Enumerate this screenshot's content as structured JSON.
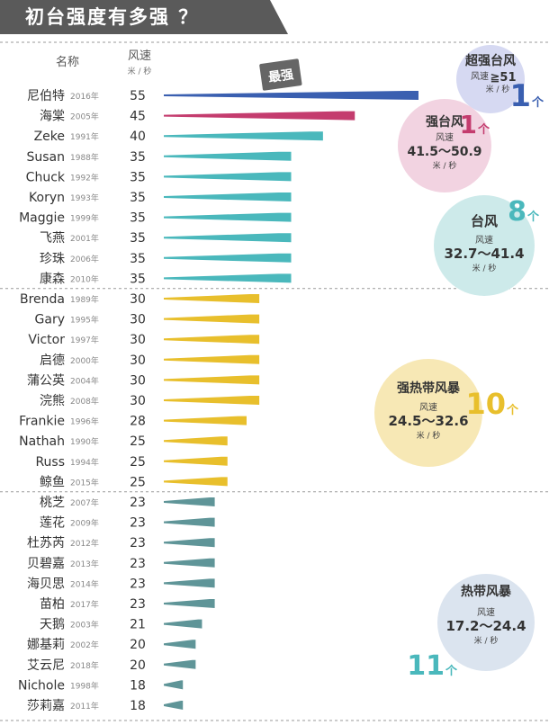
{
  "title": "初台强度有多强 ？",
  "header": {
    "name": "名称",
    "speed": "风速",
    "unit": "米 / 秒"
  },
  "stamp": "最强",
  "chart_data": {
    "type": "bar",
    "orientation": "horizontal",
    "rows": [
      {
        "name": "尼伯特",
        "year": "2016年",
        "value": 55,
        "cat": "super"
      },
      {
        "name": "海棠",
        "year": "2005年",
        "value": 45,
        "cat": "strong"
      },
      {
        "name": "Zeke",
        "year": "1991年",
        "value": 40,
        "cat": "typhoon"
      },
      {
        "name": "Susan",
        "year": "1988年",
        "value": 35,
        "cat": "typhoon"
      },
      {
        "name": "Chuck",
        "year": "1992年",
        "value": 35,
        "cat": "typhoon"
      },
      {
        "name": "Koryn",
        "year": "1993年",
        "value": 35,
        "cat": "typhoon"
      },
      {
        "name": "Maggie",
        "year": "1999年",
        "value": 35,
        "cat": "typhoon"
      },
      {
        "name": "飞燕",
        "year": "2001年",
        "value": 35,
        "cat": "typhoon"
      },
      {
        "name": "珍珠",
        "year": "2006年",
        "value": 35,
        "cat": "typhoon"
      },
      {
        "name": "康森",
        "year": "2010年",
        "value": 35,
        "cat": "typhoon"
      },
      {
        "name": "Brenda",
        "year": "1989年",
        "value": 30,
        "cat": "sts"
      },
      {
        "name": "Gary",
        "year": "1995年",
        "value": 30,
        "cat": "sts"
      },
      {
        "name": "Victor",
        "year": "1997年",
        "value": 30,
        "cat": "sts"
      },
      {
        "name": "启德",
        "year": "2000年",
        "value": 30,
        "cat": "sts"
      },
      {
        "name": "蒲公英",
        "year": "2004年",
        "value": 30,
        "cat": "sts"
      },
      {
        "name": "浣熊",
        "year": "2008年",
        "value": 30,
        "cat": "sts"
      },
      {
        "name": "Frankie",
        "year": "1996年",
        "value": 28,
        "cat": "sts"
      },
      {
        "name": "Nathah",
        "year": "1990年",
        "value": 25,
        "cat": "sts"
      },
      {
        "name": "Russ",
        "year": "1994年",
        "value": 25,
        "cat": "sts"
      },
      {
        "name": "鲸鱼",
        "year": "2015年",
        "value": 25,
        "cat": "sts"
      },
      {
        "name": "桃芝",
        "year": "2007年",
        "value": 23,
        "cat": "ts"
      },
      {
        "name": "莲花",
        "year": "2009年",
        "value": 23,
        "cat": "ts"
      },
      {
        "name": "杜苏芮",
        "year": "2012年",
        "value": 23,
        "cat": "ts"
      },
      {
        "name": "贝碧嘉",
        "year": "2013年",
        "value": 23,
        "cat": "ts"
      },
      {
        "name": "海贝思",
        "year": "2014年",
        "value": 23,
        "cat": "ts"
      },
      {
        "name": "苗柏",
        "year": "2017年",
        "value": 23,
        "cat": "ts"
      },
      {
        "name": "天鹅",
        "year": "2003年",
        "value": 21,
        "cat": "ts"
      },
      {
        "name": "娜基莉",
        "year": "2002年",
        "value": 20,
        "cat": "ts"
      },
      {
        "name": "艾云尼",
        "year": "2018年",
        "value": 20,
        "cat": "ts"
      },
      {
        "name": "Nichole",
        "year": "1998年",
        "value": 18,
        "cat": "ts"
      },
      {
        "name": "莎莉嘉",
        "year": "2011年",
        "value": 18,
        "cat": "ts"
      }
    ],
    "categories": {
      "super": {
        "label": "超强台风",
        "speed_label": "风速",
        "range": "≧51",
        "unit": "米 / 秒",
        "count": "1",
        "count_unit": "个",
        "color": "#3a5fb0",
        "bubble": "#d6d9f2"
      },
      "strong": {
        "label": "强台风",
        "speed_label": "风速",
        "range": "41.5～50.9",
        "unit": "米 / 秒",
        "count": "1",
        "count_unit": "个",
        "color": "#c43c6e",
        "bubble": "#f2d3e1"
      },
      "typhoon": {
        "label": "台风",
        "speed_label": "风速",
        "range": "32.7～41.4",
        "unit": "米 / 秒",
        "count": "8",
        "count_unit": "个",
        "color": "#4ab8bc",
        "bubble": "#cdeaea"
      },
      "sts": {
        "label": "强热带风暴",
        "speed_label": "风速",
        "range": "24.5～32.6",
        "unit": "米 / 秒",
        "count": "10",
        "count_unit": "个",
        "color": "#e8bf2c",
        "bubble": "#f7e8b5"
      },
      "ts": {
        "label": "热带风暴",
        "speed_label": "风速",
        "range": "17.2～24.4",
        "unit": "米 / 秒",
        "count": "11",
        "count_unit": "个",
        "color": "#5f9598",
        "bubble": "#dbe4ef"
      }
    }
  }
}
